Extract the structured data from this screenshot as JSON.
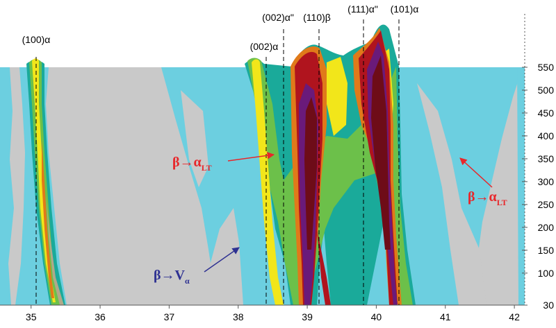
{
  "chart_data": {
    "type": "heatmap",
    "title": "",
    "xlabel": "",
    "ylabel": "",
    "xlim": [
      34.55,
      42.15
    ],
    "ylim": [
      30,
      550
    ],
    "x_ticks": [
      "35",
      "36",
      "37",
      "38",
      "39",
      "40",
      "41",
      "42"
    ],
    "y_ticks": [
      "30",
      "100",
      "150",
      "200",
      "250",
      "300",
      "350",
      "400",
      "450",
      "500",
      "550"
    ],
    "peaks": [
      {
        "label": "(100)α",
        "x": 35.05
      },
      {
        "label": "(002)α",
        "x": 38.38
      },
      {
        "label": "(002)α\"",
        "x": 38.6
      },
      {
        "label": "(110)β",
        "x": 39.15
      },
      {
        "label": "(111)α\"",
        "x": 39.8
      },
      {
        "label": "(101)α",
        "x": 40.3
      }
    ],
    "annotations": [
      {
        "main": "β→α",
        "sub": "LT",
        "color": "#e8262a",
        "x": 38.0,
        "y": 380
      },
      {
        "main": "β→V",
        "sub": "α",
        "color": "#2e3192",
        "x": 37.95,
        "y": 168
      },
      {
        "main": "β→α",
        "sub": "LT",
        "color": "#e8262a",
        "x": 41.45,
        "y": 305
      }
    ],
    "colors": {
      "background": "#c9c9c9",
      "low": "#6ccfe0",
      "band_teal": "#1aaa9a",
      "band_green": "#6cc04a",
      "band_yellow": "#f2e61a",
      "band_orange": "#e07a1a",
      "band_red": "#b0141e",
      "band_darkred": "#6e0c18",
      "band_purple": "#6a1a7a",
      "annotation_red": "#e8262a",
      "annotation_blue": "#2e3192"
    }
  }
}
